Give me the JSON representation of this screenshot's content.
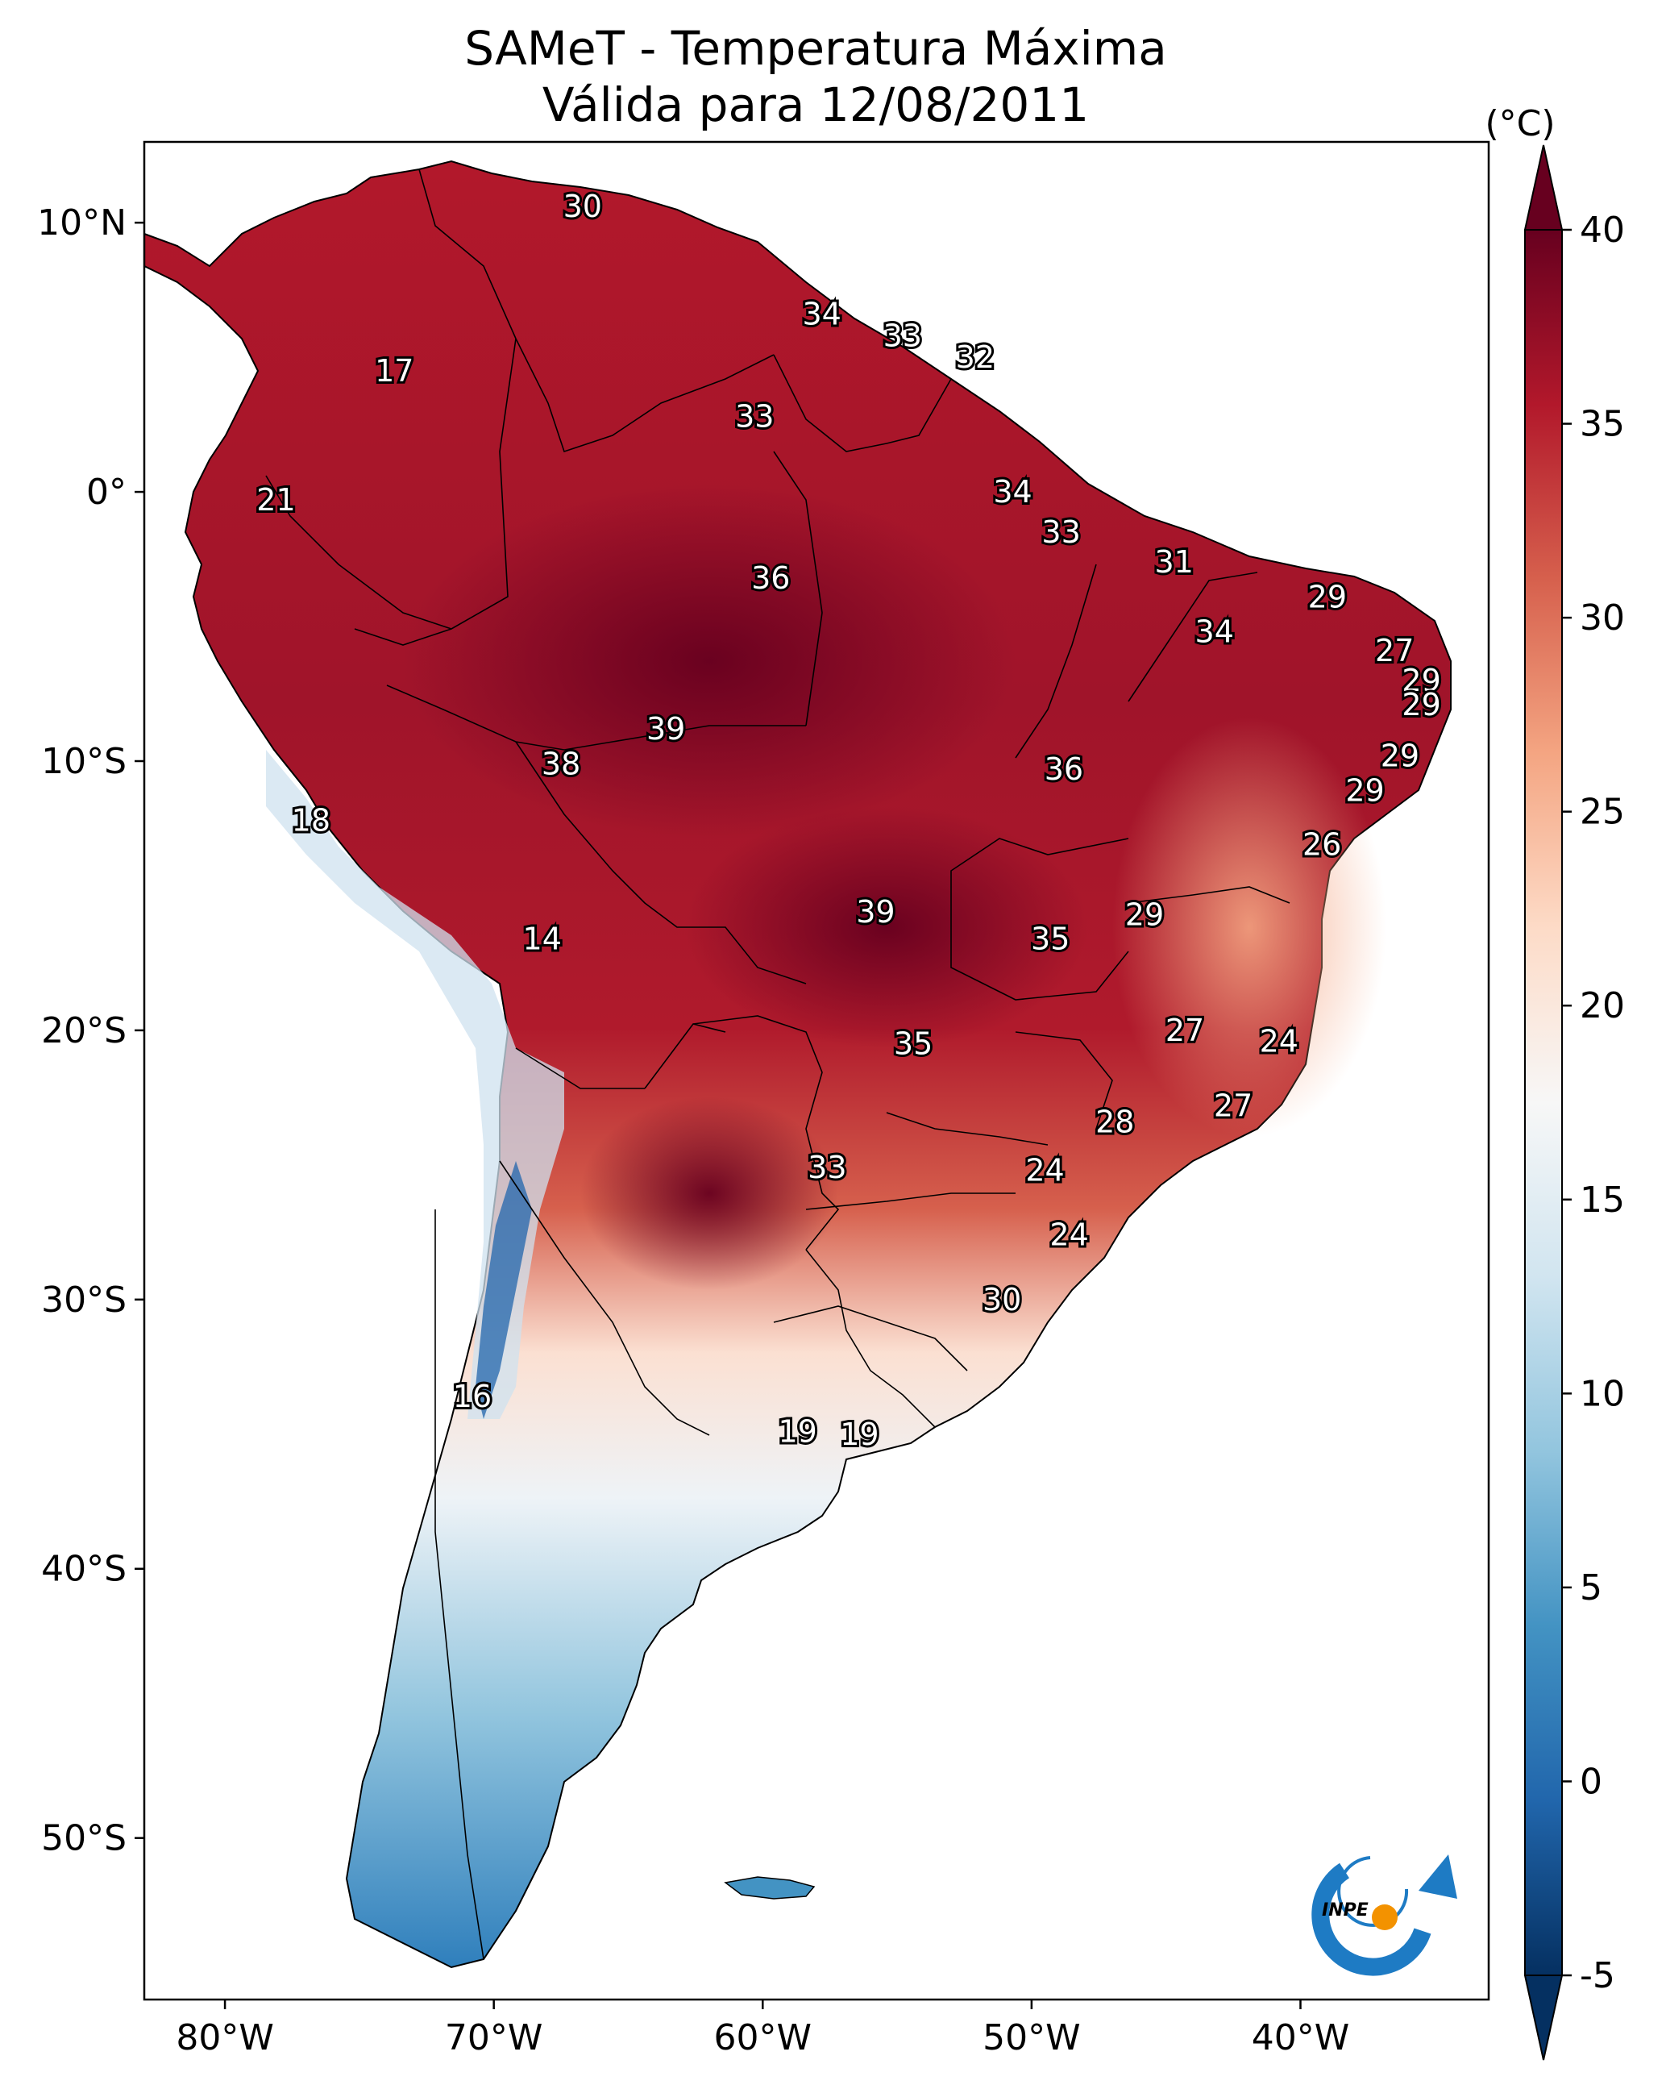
{
  "title_line1": "SAMeT - Temperatura Máxima",
  "title_line2": "Válida para 12/08/2011",
  "colorbar": {
    "unit_label": "(°C)",
    "ticks": [
      "40",
      "35",
      "30",
      "25",
      "20",
      "15",
      "10",
      "5",
      "0",
      "-5"
    ],
    "range": [
      -5,
      40
    ],
    "colors_low_to_high": [
      "#053061",
      "#2166ac",
      "#4393c3",
      "#92c5de",
      "#d1e5f0",
      "#f7f7f7",
      "#fddbc7",
      "#f4a582",
      "#d6604d",
      "#b2182b",
      "#67001f"
    ]
  },
  "axes": {
    "lon_ticks": [
      "80°W",
      "70°W",
      "60°W",
      "50°W",
      "40°W"
    ],
    "lat_ticks": [
      "10°N",
      "0°",
      "10°S",
      "20°S",
      "30°S",
      "40°S",
      "50°S"
    ],
    "lon_range": [
      -83,
      -33
    ],
    "lat_range": [
      -56,
      13
    ]
  },
  "logo": {
    "text": "INPE",
    "orange": "#f39200",
    "blue": "#1e7bc4"
  },
  "labels": [
    {
      "text": "30",
      "lon": -66.7,
      "lat": 10.6
    },
    {
      "text": "34",
      "lon": -57.8,
      "lat": 6.6
    },
    {
      "text": "33",
      "lon": -54.8,
      "lat": 5.8
    },
    {
      "text": "32",
      "lon": -52.1,
      "lat": 5.0
    },
    {
      "text": "17",
      "lon": -73.7,
      "lat": 4.5
    },
    {
      "text": "33",
      "lon": -60.3,
      "lat": 2.8
    },
    {
      "text": "34",
      "lon": -50.7,
      "lat": 0.0
    },
    {
      "text": "21",
      "lon": -78.1,
      "lat": -0.3
    },
    {
      "text": "33",
      "lon": -48.9,
      "lat": -1.5
    },
    {
      "text": "31",
      "lon": -44.7,
      "lat": -2.6
    },
    {
      "text": "36",
      "lon": -59.7,
      "lat": -3.2
    },
    {
      "text": "29",
      "lon": -39.0,
      "lat": -3.9
    },
    {
      "text": "34",
      "lon": -43.2,
      "lat": -5.2
    },
    {
      "text": "27",
      "lon": -36.5,
      "lat": -5.9
    },
    {
      "text": "29",
      "lon": -35.5,
      "lat": -7.0
    },
    {
      "text": "29",
      "lon": -35.5,
      "lat": -7.9
    },
    {
      "text": "39",
      "lon": -63.6,
      "lat": -8.8
    },
    {
      "text": "29",
      "lon": -36.3,
      "lat": -9.8
    },
    {
      "text": "36",
      "lon": -48.8,
      "lat": -10.3
    },
    {
      "text": "38",
      "lon": -67.5,
      "lat": -10.1
    },
    {
      "text": "29",
      "lon": -37.6,
      "lat": -11.1
    },
    {
      "text": "18",
      "lon": -76.8,
      "lat": -12.2
    },
    {
      "text": "26",
      "lon": -39.2,
      "lat": -13.1
    },
    {
      "text": "39",
      "lon": -55.8,
      "lat": -15.6
    },
    {
      "text": "29",
      "lon": -45.8,
      "lat": -15.7
    },
    {
      "text": "35",
      "lon": -49.3,
      "lat": -16.6
    },
    {
      "text": "14",
      "lon": -68.2,
      "lat": -16.6
    },
    {
      "text": "27",
      "lon": -44.3,
      "lat": -20.0
    },
    {
      "text": "24",
      "lon": -40.8,
      "lat": -20.4
    },
    {
      "text": "35",
      "lon": -54.4,
      "lat": -20.5
    },
    {
      "text": "27",
      "lon": -42.5,
      "lat": -22.8
    },
    {
      "text": "28",
      "lon": -46.9,
      "lat": -23.4
    },
    {
      "text": "33",
      "lon": -57.6,
      "lat": -25.1
    },
    {
      "text": "24",
      "lon": -49.5,
      "lat": -25.2
    },
    {
      "text": "24",
      "lon": -48.6,
      "lat": -27.6
    },
    {
      "text": "30",
      "lon": -51.1,
      "lat": -30.0
    },
    {
      "text": "16",
      "lon": -70.8,
      "lat": -33.6
    },
    {
      "text": "19",
      "lon": -58.7,
      "lat": -34.9
    },
    {
      "text": "19",
      "lon": -56.4,
      "lat": -35.0
    }
  ]
}
